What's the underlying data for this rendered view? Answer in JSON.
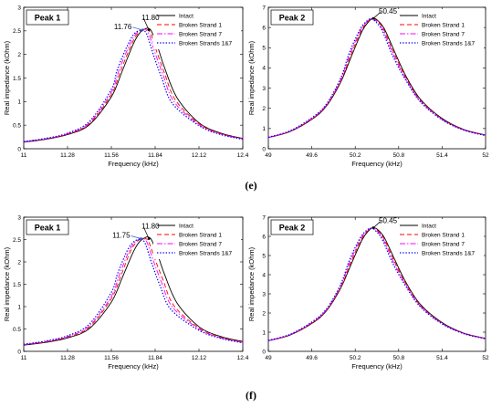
{
  "figure": {
    "panel_labels": [
      "(e)",
      "(f)"
    ]
  },
  "chart_data": [
    {
      "type": "line",
      "panel": "(e)",
      "title": "Peak 1",
      "xlabel": "Frequency (kHz)",
      "ylabel": "Real impedance (kOhm)",
      "xlim": [
        11,
        12.4
      ],
      "ylim": [
        0,
        3
      ],
      "x_ticks": [
        11,
        11.28,
        11.56,
        11.84,
        12.12,
        12.4
      ],
      "y_ticks": [
        0,
        0.5,
        1,
        1.5,
        2,
        2.5,
        3
      ],
      "grid": false,
      "legend": "top-right",
      "annotations": [
        {
          "text": "11.80",
          "x": 11.8,
          "y": 2.52
        },
        {
          "text": "11.76",
          "x": 11.76,
          "y": 2.52
        }
      ],
      "series": [
        {
          "name": "Intact",
          "color": "#000000",
          "style": "solid",
          "x": [
            11.0,
            11.14,
            11.28,
            11.42,
            11.56,
            11.63,
            11.7,
            11.74,
            11.78,
            11.8,
            11.82,
            11.86,
            11.9,
            11.98,
            12.12,
            12.26,
            12.4
          ],
          "values": [
            0.14,
            0.2,
            0.3,
            0.51,
            1.1,
            1.65,
            2.22,
            2.45,
            2.55,
            2.55,
            2.47,
            2.12,
            1.72,
            1.08,
            0.55,
            0.33,
            0.22
          ]
        },
        {
          "name": "Broken Strand 1",
          "color": "#ff0000",
          "style": "dashed",
          "x": [
            11.0,
            11.14,
            11.28,
            11.42,
            11.56,
            11.62,
            11.69,
            11.73,
            11.77,
            11.79,
            11.81,
            11.85,
            11.9,
            11.97,
            12.12,
            12.26,
            12.4
          ],
          "values": [
            0.15,
            0.21,
            0.31,
            0.53,
            1.15,
            1.66,
            2.22,
            2.45,
            2.54,
            2.53,
            2.45,
            2.06,
            1.6,
            1.03,
            0.53,
            0.32,
            0.21
          ]
        },
        {
          "name": "Broken Strand 7",
          "color": "#ff00ff",
          "style": "dashdot",
          "x": [
            11.0,
            11.14,
            11.28,
            11.42,
            11.56,
            11.61,
            11.68,
            11.72,
            11.76,
            11.78,
            11.8,
            11.84,
            11.89,
            11.96,
            12.12,
            12.26,
            12.4
          ],
          "values": [
            0.15,
            0.21,
            0.32,
            0.55,
            1.2,
            1.68,
            2.23,
            2.45,
            2.53,
            2.52,
            2.43,
            2.03,
            1.57,
            1.0,
            0.51,
            0.31,
            0.21
          ]
        },
        {
          "name": "Broken Strands 1&7",
          "color": "#0000ff",
          "style": "dotted",
          "x": [
            11.0,
            11.14,
            11.28,
            11.42,
            11.56,
            11.6,
            11.67,
            11.71,
            11.75,
            11.77,
            11.79,
            11.83,
            11.88,
            11.95,
            12.12,
            12.26,
            12.4
          ],
          "values": [
            0.15,
            0.22,
            0.33,
            0.58,
            1.26,
            1.7,
            2.24,
            2.45,
            2.52,
            2.5,
            2.4,
            1.98,
            1.52,
            0.96,
            0.49,
            0.3,
            0.2
          ]
        }
      ]
    },
    {
      "type": "line",
      "panel": "(e)",
      "title": "Peak 2",
      "xlabel": "Frequency (kHz)",
      "ylabel": "Real impedance (kOhm)",
      "xlim": [
        49,
        52
      ],
      "ylim": [
        0,
        7
      ],
      "x_ticks": [
        49,
        49.6,
        50.2,
        50.8,
        51.4,
        52
      ],
      "y_ticks": [
        0,
        1,
        2,
        3,
        4,
        5,
        6,
        7
      ],
      "grid": false,
      "legend": "top-right",
      "annotations": [
        {
          "text": "50.45",
          "x": 50.45,
          "y": 6.45
        }
      ],
      "series": [
        {
          "name": "Intact",
          "color": "#000000",
          "style": "solid",
          "x": [
            49.0,
            49.3,
            49.6,
            49.8,
            50.0,
            50.15,
            50.3,
            50.4,
            50.45,
            50.5,
            50.6,
            50.75,
            50.9,
            51.1,
            51.4,
            51.7,
            52.0
          ],
          "values": [
            0.55,
            0.85,
            1.45,
            2.1,
            3.3,
            4.6,
            5.85,
            6.35,
            6.45,
            6.38,
            5.95,
            4.75,
            3.6,
            2.45,
            1.5,
            0.95,
            0.68
          ]
        },
        {
          "name": "Broken Strand 1",
          "color": "#ff0000",
          "style": "dashed",
          "x": [
            49.0,
            49.3,
            49.6,
            49.8,
            50.0,
            50.14,
            50.29,
            50.39,
            50.44,
            50.49,
            50.59,
            50.74,
            50.9,
            51.1,
            51.4,
            51.7,
            52.0
          ],
          "values": [
            0.55,
            0.86,
            1.47,
            2.13,
            3.35,
            4.65,
            5.88,
            6.35,
            6.44,
            6.36,
            5.92,
            4.7,
            3.52,
            2.4,
            1.47,
            0.94,
            0.67
          ]
        },
        {
          "name": "Broken Strand 7",
          "color": "#ff00ff",
          "style": "dashdot",
          "x": [
            49.0,
            49.3,
            49.6,
            49.8,
            50.0,
            50.13,
            50.28,
            50.38,
            50.43,
            50.48,
            50.58,
            50.73,
            50.9,
            51.1,
            51.4,
            51.7,
            52.0
          ],
          "values": [
            0.56,
            0.87,
            1.5,
            2.16,
            3.42,
            4.7,
            5.9,
            6.35,
            6.43,
            6.35,
            5.9,
            4.65,
            3.45,
            2.36,
            1.45,
            0.93,
            0.66
          ]
        },
        {
          "name": "Broken Strands 1&7",
          "color": "#0000ff",
          "style": "dotted",
          "x": [
            49.0,
            49.3,
            49.6,
            49.8,
            50.0,
            50.12,
            50.27,
            50.37,
            50.42,
            50.47,
            50.57,
            50.72,
            50.9,
            51.1,
            51.4,
            51.7,
            52.0
          ],
          "values": [
            0.57,
            0.89,
            1.53,
            2.2,
            3.5,
            4.76,
            5.93,
            6.35,
            6.42,
            6.33,
            5.86,
            4.58,
            3.38,
            2.32,
            1.43,
            0.92,
            0.65
          ]
        }
      ]
    },
    {
      "type": "line",
      "panel": "(f)",
      "title": "Peak 1",
      "xlabel": "Frequency (kHz)",
      "ylabel": "Real impedance (kOhm)",
      "xlim": [
        11,
        12.4
      ],
      "ylim": [
        0,
        3
      ],
      "x_ticks": [
        11,
        11.28,
        11.56,
        11.84,
        12.12,
        12.4
      ],
      "y_ticks": [
        0,
        0.5,
        1,
        1.5,
        2,
        2.5,
        3
      ],
      "grid": false,
      "legend": "top-right",
      "annotations": [
        {
          "text": "11.80",
          "x": 11.8,
          "y": 2.52
        },
        {
          "text": "11.75",
          "x": 11.75,
          "y": 2.52
        }
      ],
      "series": [
        {
          "name": "Intact",
          "color": "#000000",
          "style": "solid",
          "x": [
            11.0,
            11.14,
            11.28,
            11.42,
            11.56,
            11.63,
            11.7,
            11.74,
            11.78,
            11.8,
            11.82,
            11.86,
            11.9,
            11.98,
            12.12,
            12.26,
            12.4
          ],
          "values": [
            0.14,
            0.2,
            0.3,
            0.51,
            1.1,
            1.65,
            2.22,
            2.45,
            2.55,
            2.55,
            2.47,
            2.12,
            1.72,
            1.08,
            0.55,
            0.33,
            0.22
          ]
        },
        {
          "name": "Broken Strand 1",
          "color": "#ff0000",
          "style": "dashed",
          "x": [
            11.0,
            11.14,
            11.28,
            11.42,
            11.56,
            11.62,
            11.68,
            11.72,
            11.76,
            11.78,
            11.8,
            11.84,
            11.89,
            11.96,
            12.12,
            12.26,
            12.4
          ],
          "values": [
            0.15,
            0.21,
            0.32,
            0.54,
            1.18,
            1.68,
            2.22,
            2.44,
            2.53,
            2.52,
            2.44,
            2.05,
            1.6,
            1.02,
            0.52,
            0.31,
            0.21
          ]
        },
        {
          "name": "Broken Strand 7",
          "color": "#ff00ff",
          "style": "dashdot",
          "x": [
            11.0,
            11.14,
            11.28,
            11.42,
            11.56,
            11.61,
            11.67,
            11.71,
            11.75,
            11.77,
            11.79,
            11.83,
            11.88,
            11.95,
            12.12,
            12.26,
            12.4
          ],
          "values": [
            0.15,
            0.22,
            0.33,
            0.57,
            1.23,
            1.7,
            2.22,
            2.44,
            2.52,
            2.51,
            2.42,
            2.01,
            1.55,
            0.99,
            0.5,
            0.3,
            0.2
          ]
        },
        {
          "name": "Broken Strands 1&7",
          "color": "#0000ff",
          "style": "dotted",
          "x": [
            11.0,
            11.14,
            11.28,
            11.42,
            11.56,
            11.6,
            11.66,
            11.7,
            11.74,
            11.76,
            11.78,
            11.82,
            11.87,
            11.94,
            12.12,
            12.26,
            12.4
          ],
          "values": [
            0.16,
            0.23,
            0.35,
            0.61,
            1.32,
            1.74,
            2.24,
            2.44,
            2.51,
            2.49,
            2.38,
            1.95,
            1.48,
            0.94,
            0.47,
            0.29,
            0.19
          ]
        }
      ]
    },
    {
      "type": "line",
      "panel": "(f)",
      "title": "Peak 2",
      "xlabel": "Frequency (kHz)",
      "ylabel": "Real impedance (kOhm)",
      "xlim": [
        49,
        52
      ],
      "ylim": [
        0,
        7
      ],
      "x_ticks": [
        49,
        49.6,
        50.2,
        50.8,
        51.4,
        52
      ],
      "y_ticks": [
        0,
        1,
        2,
        3,
        4,
        5,
        6,
        7
      ],
      "grid": false,
      "legend": "top-right",
      "annotations": [
        {
          "text": "50.45",
          "x": 50.45,
          "y": 6.45
        }
      ],
      "series": [
        {
          "name": "Intact",
          "color": "#000000",
          "style": "solid",
          "x": [
            49.0,
            49.3,
            49.6,
            49.8,
            50.0,
            50.15,
            50.3,
            50.4,
            50.45,
            50.5,
            50.6,
            50.75,
            50.9,
            51.1,
            51.4,
            51.7,
            52.0
          ],
          "values": [
            0.55,
            0.85,
            1.45,
            2.1,
            3.3,
            4.6,
            5.85,
            6.35,
            6.45,
            6.38,
            5.95,
            4.75,
            3.6,
            2.45,
            1.5,
            0.95,
            0.68
          ]
        },
        {
          "name": "Broken Strand 1",
          "color": "#ff0000",
          "style": "dashed",
          "x": [
            49.0,
            49.3,
            49.6,
            49.8,
            50.0,
            50.14,
            50.29,
            50.39,
            50.44,
            50.49,
            50.59,
            50.74,
            50.9,
            51.1,
            51.4,
            51.7,
            52.0
          ],
          "values": [
            0.55,
            0.86,
            1.47,
            2.13,
            3.35,
            4.65,
            5.88,
            6.35,
            6.44,
            6.36,
            5.92,
            4.7,
            3.52,
            2.4,
            1.47,
            0.94,
            0.67
          ]
        },
        {
          "name": "Broken Strand 7",
          "color": "#ff00ff",
          "style": "dashdot",
          "x": [
            49.0,
            49.3,
            49.6,
            49.8,
            50.0,
            50.13,
            50.28,
            50.38,
            50.43,
            50.48,
            50.58,
            50.73,
            50.9,
            51.1,
            51.4,
            51.7,
            52.0
          ],
          "values": [
            0.56,
            0.87,
            1.5,
            2.16,
            3.42,
            4.7,
            5.9,
            6.35,
            6.43,
            6.35,
            5.9,
            4.65,
            3.45,
            2.36,
            1.45,
            0.93,
            0.66
          ]
        },
        {
          "name": "Broken Strands 1&7",
          "color": "#0000ff",
          "style": "dotted",
          "x": [
            49.0,
            49.3,
            49.6,
            49.8,
            50.0,
            50.12,
            50.27,
            50.37,
            50.42,
            50.47,
            50.57,
            50.72,
            50.9,
            51.1,
            51.4,
            51.7,
            52.0
          ],
          "values": [
            0.57,
            0.89,
            1.53,
            2.2,
            3.5,
            4.76,
            5.93,
            6.35,
            6.42,
            6.33,
            5.86,
            4.58,
            3.38,
            2.32,
            1.43,
            0.92,
            0.65
          ]
        }
      ]
    }
  ]
}
